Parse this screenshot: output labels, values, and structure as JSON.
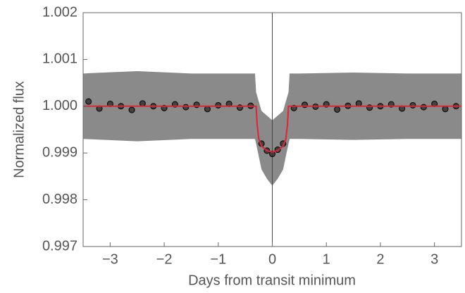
{
  "chart_data": {
    "type": "scatter",
    "xlabel": "Days from transit minimum",
    "ylabel": "Normalized flux",
    "xlim": [
      -3.5,
      3.5
    ],
    "ylim": [
      0.997,
      1.002
    ],
    "xticks": [
      {
        "value": -3,
        "label": "−3"
      },
      {
        "value": -2,
        "label": "−2"
      },
      {
        "value": -1,
        "label": "−1"
      },
      0,
      1,
      2,
      3
    ],
    "yticks": [
      0.997,
      0.998,
      0.999,
      {
        "value": 1,
        "label": "1.000"
      },
      1.001,
      1.002
    ],
    "vline": 0,
    "series": [
      {
        "style": "band",
        "color": "#7d7d7d",
        "x": [
          -3.5,
          -2.5,
          -1.5,
          -0.5,
          -0.32,
          -0.3,
          -0.2,
          -0.1,
          0,
          0.1,
          0.2,
          0.3,
          0.32,
          0.5,
          1.5,
          2.5,
          3.5
        ],
        "upper": [
          1.0007,
          1.00075,
          1.0007,
          1.0007,
          1.0007,
          1.0003,
          0.9999,
          0.9998,
          0.9997,
          0.9998,
          0.9999,
          1.0003,
          1.0007,
          1.0007,
          1.00072,
          1.0007,
          1.0007
        ],
        "lower": [
          0.9993,
          0.99925,
          0.9993,
          0.9993,
          0.9993,
          0.9992,
          0.99865,
          0.99845,
          0.9983,
          0.99845,
          0.99865,
          0.9992,
          0.9993,
          0.9993,
          0.99928,
          0.9993,
          0.9993
        ]
      },
      {
        "style": "points",
        "color": "#2a2a2a",
        "x": [
          -3.4,
          -3.2,
          -3.0,
          -2.8,
          -2.6,
          -2.4,
          -2.2,
          -2.0,
          -1.8,
          -1.6,
          -1.4,
          -1.2,
          -1.0,
          -0.8,
          -0.6,
          -0.4,
          -0.2,
          -0.1,
          0,
          0.1,
          0.2,
          0.4,
          0.6,
          0.8,
          1.0,
          1.2,
          1.4,
          1.6,
          1.8,
          2.0,
          2.2,
          2.4,
          2.6,
          2.8,
          3.0,
          3.2,
          3.4
        ],
        "values": [
          1.0001,
          0.99995,
          1.00005,
          1.0,
          0.99992,
          1.00006,
          1.0,
          0.99996,
          1.00004,
          0.99998,
          1.00003,
          0.99994,
          1.00002,
          1.00005,
          0.99997,
          1.00001,
          0.9992,
          0.99905,
          0.99898,
          0.99907,
          0.9992,
          0.99996,
          1.00003,
          0.99999,
          1.00004,
          0.99993,
          1.00001,
          1.00006,
          0.99997,
          1.0,
          1.00004,
          0.99995,
          1.00002,
          0.99998,
          1.00005,
          0.99994,
          1.0
        ]
      },
      {
        "style": "line",
        "color": "#e02430",
        "x": [
          -3.5,
          -0.3,
          -0.28,
          -0.25,
          -0.2,
          -0.1,
          0,
          0.1,
          0.2,
          0.25,
          0.28,
          0.3,
          3.5
        ],
        "values": [
          1.0,
          1.0,
          0.9996,
          0.9993,
          0.99915,
          0.99905,
          0.99902,
          0.99905,
          0.99915,
          0.9993,
          0.9996,
          1.0,
          1.0
        ]
      }
    ]
  }
}
